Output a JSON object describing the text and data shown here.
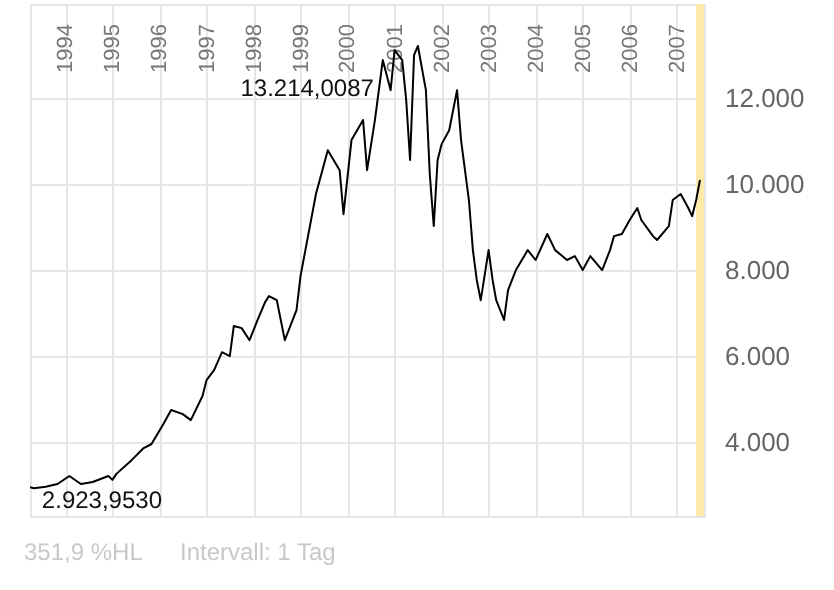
{
  "chart_data": {
    "type": "line",
    "x": [
      "1993-04",
      "1993-05",
      "1993-08",
      "1993-11",
      "1994-02",
      "1994-05",
      "1994-08",
      "1994-12",
      "1995-01",
      "1995-02",
      "1995-06",
      "1995-09",
      "1995-11",
      "1996-02",
      "1996-04",
      "1996-07",
      "1996-09",
      "1996-12",
      "1997-01",
      "1997-03",
      "1997-05",
      "1997-07",
      "1997-08",
      "1997-10",
      "1997-12",
      "1998-02",
      "1998-04",
      "1998-05",
      "1998-07",
      "1998-09",
      "1998-12",
      "1999-01",
      "1999-05",
      "1999-08",
      "1999-11",
      "1999-12",
      "2000-02",
      "2000-05",
      "2000-06",
      "2000-08",
      "2000-10",
      "2000-12",
      "2001-01",
      "2001-03",
      "2001-04",
      "2001-05",
      "2001-06",
      "2001-07",
      "2001-09",
      "2001-10",
      "2001-11",
      "2001-12",
      "2002-01",
      "2002-03",
      "2002-05",
      "2002-06",
      "2002-08",
      "2002-09",
      "2002-10",
      "2002-11",
      "2003-01",
      "2003-02",
      "2003-03",
      "2003-05",
      "2003-06",
      "2003-08",
      "2003-11",
      "2004-01",
      "2004-04",
      "2004-06",
      "2004-09",
      "2004-11",
      "2005-01",
      "2005-03",
      "2005-06",
      "2005-08",
      "2005-09",
      "2005-11",
      "2006-01",
      "2006-03",
      "2006-04",
      "2006-07",
      "2006-08",
      "2006-11",
      "2006-12",
      "2007-02",
      "2007-04",
      "2007-05",
      "2007-06",
      "2007-07"
    ],
    "series": [
      {
        "color": "#000000",
        "values": [
          2950,
          2923.953,
          2960,
          3025,
          3210,
          3025,
          3070,
          3210,
          3120,
          3260,
          3585,
          3860,
          3955,
          4420,
          4745,
          4650,
          4510,
          5070,
          5440,
          5675,
          6090,
          6000,
          6700,
          6650,
          6370,
          6835,
          7255,
          7395,
          7300,
          6370,
          7070,
          7860,
          9770,
          10790,
          10325,
          9300,
          11025,
          11490,
          10325,
          11490,
          12885,
          12185,
          13115,
          12885,
          11955,
          10560,
          13000,
          13214.0087,
          12185,
          10235,
          9025,
          10560,
          10930,
          11255,
          12185,
          11025,
          9630,
          8465,
          7770,
          7300,
          8465,
          7770,
          7300,
          6840,
          7535,
          8000,
          8465,
          8235,
          8840,
          8465,
          8235,
          8325,
          8000,
          8325,
          8000,
          8465,
          8790,
          8840,
          9165,
          9445,
          9165,
          8790,
          8700,
          9025,
          9630,
          9770,
          9445,
          9255,
          9630,
          10095
        ]
      }
    ],
    "xlim": [
      "1993-04",
      "2007-08"
    ],
    "xticks": [
      "1994",
      "1995",
      "1996",
      "1997",
      "1998",
      "1999",
      "2000",
      "2001",
      "2002",
      "2003",
      "2004",
      "2005",
      "2006",
      "2007"
    ],
    "ylim": [
      2280,
      14190
    ],
    "yticks": [
      {
        "value": 4000,
        "label": "4.000"
      },
      {
        "value": 6000,
        "label": "6.000"
      },
      {
        "value": 8000,
        "label": "8.000"
      },
      {
        "value": 10000,
        "label": "10.000"
      },
      {
        "value": 12000,
        "label": "12.000"
      }
    ],
    "grid": true,
    "bands": [
      {
        "axis": "x",
        "from": "2007-06",
        "to": "2007-08",
        "color": "#fde9a8"
      }
    ],
    "annotations": [
      {
        "text": "13.214,0087",
        "x": "2001-07",
        "y": 13214.0087
      },
      {
        "text": "2.923,9530",
        "x": "1993-05",
        "y": 2923.953
      },
      "351,9 %HL",
      "Intervall: 1 Tag"
    ]
  }
}
